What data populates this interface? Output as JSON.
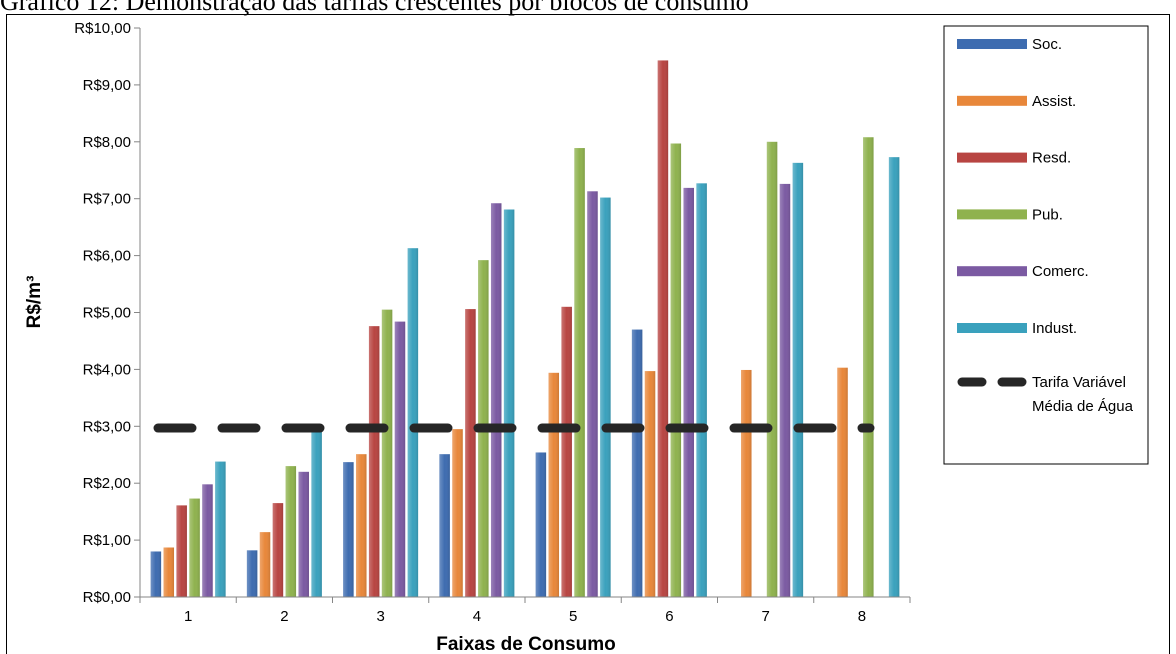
{
  "caption": "Gráfico 12: Demonstração das tarifas crescentes por blocos de consumo",
  "chart_data": {
    "type": "bar",
    "title": "",
    "xlabel": "Faixas de Consumo",
    "ylabel": "R$/m³",
    "ylim": [
      0,
      10
    ],
    "yticks": [
      "R$0,00",
      "R$1,00",
      "R$2,00",
      "R$3,00",
      "R$4,00",
      "R$5,00",
      "R$6,00",
      "R$7,00",
      "R$8,00",
      "R$9,00",
      "R$10,00"
    ],
    "categories": [
      "1",
      "2",
      "3",
      "4",
      "5",
      "6",
      "7",
      "8"
    ],
    "series": [
      {
        "name": "Soc.",
        "color": "#3e6cb0",
        "values": [
          0.8,
          0.82,
          2.37,
          2.51,
          2.54,
          4.7,
          null,
          null
        ]
      },
      {
        "name": "Assist.",
        "color": "#e8873a",
        "values": [
          0.87,
          1.14,
          2.51,
          2.95,
          3.94,
          3.97,
          3.99,
          4.03
        ]
      },
      {
        "name": "Resd.",
        "color": "#b84542",
        "values": [
          1.61,
          1.65,
          4.76,
          5.06,
          5.1,
          9.43,
          null,
          null
        ]
      },
      {
        "name": "Pub.",
        "color": "#8fb24e",
        "values": [
          1.73,
          2.3,
          5.05,
          5.92,
          7.89,
          7.97,
          8.0,
          8.08
        ]
      },
      {
        "name": "Comerc.",
        "color": "#7b5aa2",
        "values": [
          1.98,
          2.2,
          4.84,
          6.92,
          7.13,
          7.19,
          7.26,
          null
        ]
      },
      {
        "name": "Indust.",
        "color": "#3aa1bd",
        "values": [
          2.38,
          2.95,
          6.13,
          6.81,
          7.02,
          7.27,
          7.63,
          7.73
        ]
      }
    ],
    "reference_line": {
      "name": [
        "Tarifa Variável",
        "Média de Água"
      ],
      "value": 2.97,
      "color": "#262626",
      "style": "dashed"
    },
    "legend_position": "right",
    "grid": false
  }
}
